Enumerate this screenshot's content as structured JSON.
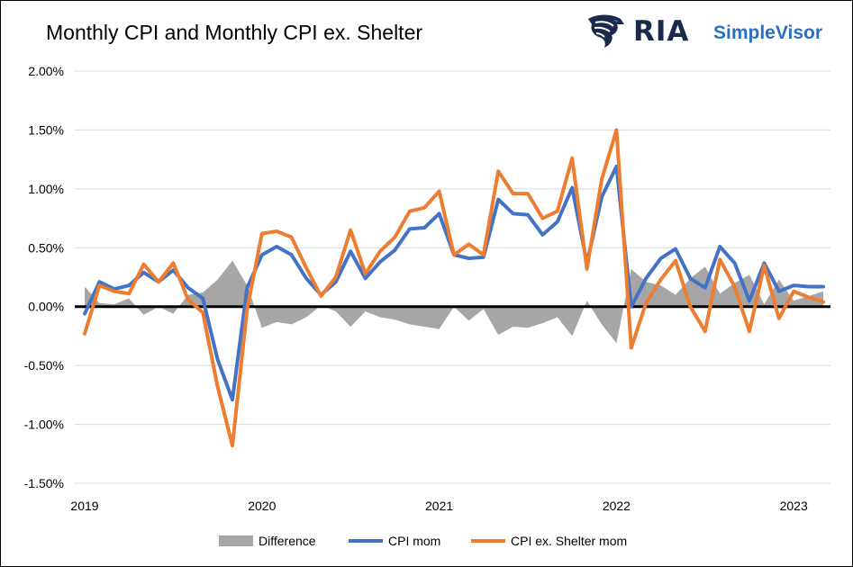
{
  "header": {
    "brand_main": "RIA",
    "brand_sub": "SimpleVisor"
  },
  "icons": {
    "brand": "eagle-head-icon"
  },
  "colors": {
    "cpi": "#4472c4",
    "cpi_ex_shelter": "#ed7d31",
    "difference": "#a6a6a6",
    "zero_line": "#000000",
    "grid": "#d9d9d9"
  },
  "chart_data": {
    "type": "line",
    "title": "Monthly CPI and Monthly CPI ex. Shelter",
    "xlabel": "",
    "ylabel": "",
    "ylim": [
      -1.5,
      2.0
    ],
    "y_ticks": [
      -1.5,
      -1.0,
      -0.5,
      0.0,
      0.5,
      1.0,
      1.5,
      2.0
    ],
    "y_tick_labels": [
      "-1.50%",
      "-1.00%",
      "-0.50%",
      "0.00%",
      "0.50%",
      "1.00%",
      "1.50%",
      "2.00%"
    ],
    "x_tick_labels": [
      "2019",
      "2020",
      "2021",
      "2022",
      "2023"
    ],
    "x_tick_months": [
      "2019-01",
      "2020-01",
      "2021-01",
      "2022-01",
      "2023-01"
    ],
    "grid": "horizontal",
    "legend_position": "bottom",
    "x": [
      "2019-01",
      "2019-02",
      "2019-03",
      "2019-04",
      "2019-05",
      "2019-06",
      "2019-07",
      "2019-08",
      "2019-09",
      "2019-10",
      "2019-11",
      "2019-12",
      "2020-01",
      "2020-02",
      "2020-03",
      "2020-04",
      "2020-05",
      "2020-06",
      "2020-07",
      "2020-08",
      "2020-09",
      "2020-10",
      "2020-11",
      "2020-12",
      "2021-01",
      "2021-02",
      "2021-03",
      "2021-04",
      "2021-05",
      "2021-06",
      "2021-07",
      "2021-08",
      "2021-09",
      "2021-10",
      "2021-11",
      "2021-12",
      "2022-01",
      "2022-02",
      "2022-03",
      "2022-04",
      "2022-05",
      "2022-06",
      "2022-07",
      "2022-08",
      "2022-09",
      "2022-10",
      "2022-11",
      "2022-12",
      "2023-01",
      "2023-02",
      "2023-03"
    ],
    "series": [
      {
        "name": "Difference",
        "type": "area",
        "values": [
          0.17,
          0.03,
          0.02,
          0.07,
          -0.07,
          0.0,
          -0.06,
          0.1,
          0.12,
          0.23,
          0.39,
          0.18,
          -0.18,
          -0.13,
          -0.15,
          -0.09,
          0.01,
          -0.04,
          -0.17,
          -0.04,
          -0.09,
          -0.11,
          -0.15,
          -0.17,
          -0.19,
          0.0,
          -0.12,
          -0.02,
          -0.24,
          -0.17,
          -0.18,
          -0.14,
          -0.09,
          -0.25,
          0.05,
          -0.15,
          -0.31,
          0.32,
          0.21,
          0.18,
          0.1,
          0.24,
          0.34,
          0.11,
          0.2,
          0.27,
          0.02,
          0.23,
          0.05,
          0.09,
          0.13
        ]
      },
      {
        "name": "CPI mom",
        "type": "line",
        "values": [
          -0.06,
          0.21,
          0.15,
          0.18,
          0.29,
          0.21,
          0.31,
          0.16,
          0.07,
          -0.45,
          -0.79,
          0.16,
          0.44,
          0.51,
          0.44,
          0.24,
          0.1,
          0.21,
          0.47,
          0.24,
          0.38,
          0.48,
          0.66,
          0.67,
          0.79,
          0.44,
          0.41,
          0.42,
          0.91,
          0.79,
          0.78,
          0.61,
          0.72,
          1.01,
          0.37,
          0.93,
          1.19,
          0.0,
          0.24,
          0.41,
          0.49,
          0.24,
          0.16,
          0.51,
          0.37,
          0.05,
          0.37,
          0.13,
          0.18,
          0.17,
          0.17
        ]
      },
      {
        "name": "CPI ex. Shelter mom",
        "type": "line",
        "values": [
          -0.23,
          0.18,
          0.13,
          0.11,
          0.36,
          0.21,
          0.37,
          0.06,
          -0.05,
          -0.68,
          -1.18,
          -0.02,
          0.62,
          0.64,
          0.59,
          0.33,
          0.09,
          0.25,
          0.65,
          0.28,
          0.47,
          0.59,
          0.81,
          0.84,
          0.98,
          0.44,
          0.53,
          0.44,
          1.15,
          0.96,
          0.96,
          0.75,
          0.81,
          1.26,
          0.32,
          1.08,
          1.5,
          -0.35,
          0.03,
          0.23,
          0.39,
          0.0,
          -0.21,
          0.4,
          0.17,
          -0.21,
          0.35,
          -0.1,
          0.13,
          0.08,
          0.04
        ]
      }
    ]
  }
}
